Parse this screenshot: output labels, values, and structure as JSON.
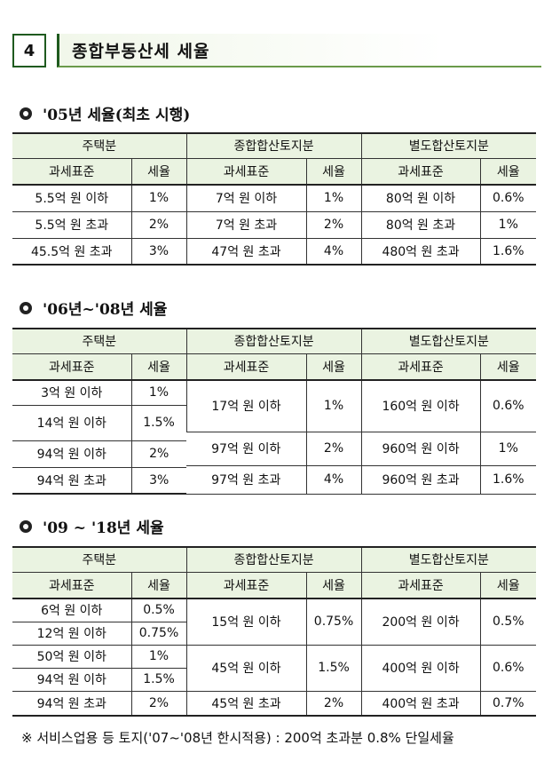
{
  "header": {
    "number": "4",
    "title": "종합부동산세 세율"
  },
  "cols": {
    "housing": "주택분",
    "combined_land": "종합합산토지분",
    "separate_land": "별도합산토지분",
    "base": "과세표준",
    "rate": "세율"
  },
  "sections": [
    {
      "title": "'05년 세율(최초 시행)",
      "housing": [
        {
          "base": "5.5억 원 이하",
          "rate": "1%"
        },
        {
          "base": "5.5억 원 초과",
          "rate": "2%"
        },
        {
          "base": "45.5억 원 초과",
          "rate": "3%"
        }
      ],
      "combined_land": [
        {
          "base": "7억 원 이하",
          "rate": "1%"
        },
        {
          "base": "7억 원 초과",
          "rate": "2%"
        },
        {
          "base": "47억 원 초과",
          "rate": "4%"
        }
      ],
      "separate_land": [
        {
          "base": "80억 원 이하",
          "rate": "0.6%"
        },
        {
          "base": "80억 원 초과",
          "rate": "1%"
        },
        {
          "base": "480억 원 초과",
          "rate": "1.6%"
        }
      ]
    },
    {
      "title": "'06년~'08년 세율",
      "housing": [
        {
          "base": "3억 원 이하",
          "rate": "1%"
        },
        {
          "base": "14억 원 이하",
          "rate": "1.5%"
        },
        {
          "base": "94억 원 이하",
          "rate": "2%"
        },
        {
          "base": "94억 원 초과",
          "rate": "3%"
        }
      ],
      "combined_land": [
        {
          "base": "17억 원 이하",
          "rate": "1%"
        },
        {
          "base": "97억 원 이하",
          "rate": "2%"
        },
        {
          "base": "97억 원 초과",
          "rate": "4%"
        }
      ],
      "separate_land": [
        {
          "base": "160억 원 이하",
          "rate": "0.6%"
        },
        {
          "base": "960억 원 이하",
          "rate": "1%"
        },
        {
          "base": "960억 원 초과",
          "rate": "1.6%"
        }
      ]
    },
    {
      "title": "'09 ~ '18년 세율",
      "housing": [
        {
          "base": "6억 원 이하",
          "rate": "0.5%"
        },
        {
          "base": "12억 원 이하",
          "rate": "0.75%"
        },
        {
          "base": "50억 원 이하",
          "rate": "1%"
        },
        {
          "base": "94억 원 이하",
          "rate": "1.5%"
        },
        {
          "base": "94억 원 초과",
          "rate": "2%"
        }
      ],
      "combined_land": [
        {
          "base": "15억 원 이하",
          "rate": "0.75%"
        },
        {
          "base": "45억 원 이하",
          "rate": "1.5%"
        },
        {
          "base": "45억 원 초과",
          "rate": "2%"
        }
      ],
      "separate_land": [
        {
          "base": "200억 원 이하",
          "rate": "0.5%"
        },
        {
          "base": "400억 원 이하",
          "rate": "0.6%"
        },
        {
          "base": "400억 원 초과",
          "rate": "0.7%"
        }
      ]
    }
  ],
  "footnote": "※ 서비스업용 등 토지('07~'08년 한시적용) : 200억 초과분 0.8% 단일세율"
}
